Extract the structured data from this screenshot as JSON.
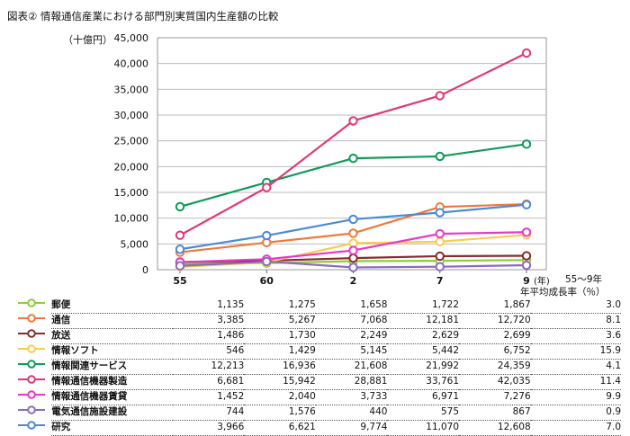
{
  "title": "図表② 情報通信産業における部門別実質国内生産額の比較",
  "unit": "（十億円）",
  "growth_header_line1": "55〜9年",
  "growth_header_line2": "年平均成長率（％）",
  "chart_data": {
    "type": "line",
    "title": "図表② 情報通信産業における部門別実質国内生産額の比較",
    "ylabel": "（十億円）",
    "xlabel": "",
    "x_unit": "(年)",
    "categories": [
      "55",
      "60",
      "2",
      "7",
      "9"
    ],
    "ylim": [
      0,
      45000
    ],
    "yticks": [
      "0",
      "5,000",
      "10,000",
      "15,000",
      "20,000",
      "25,000",
      "30,000",
      "35,000",
      "40,000",
      "45,000"
    ],
    "ytick_values": [
      0,
      5000,
      10000,
      15000,
      20000,
      25000,
      30000,
      35000,
      40000,
      45000
    ],
    "grid": true,
    "legend_position": "bottom-table",
    "series": [
      {
        "name": "郵便",
        "color": "#8ccc3c",
        "values": [
          1135,
          1275,
          1658,
          1722,
          1867
        ],
        "labels": [
          "1,135",
          "1,275",
          "1,658",
          "1,722",
          "1,867"
        ],
        "growth": "3.0"
      },
      {
        "name": "通信",
        "color": "#f07838",
        "values": [
          3385,
          5267,
          7068,
          12181,
          12720
        ],
        "labels": [
          "3,385",
          "5,267",
          "7,068",
          "12,181",
          "12,720"
        ],
        "growth": "8.1"
      },
      {
        "name": "放送",
        "color": "#8a2a2a",
        "values": [
          1486,
          1730,
          2249,
          2629,
          2699
        ],
        "labels": [
          "1,486",
          "1,730",
          "2,249",
          "2,629",
          "2,699"
        ],
        "growth": "3.6"
      },
      {
        "name": "情報ソフト",
        "color": "#f8cc50",
        "values": [
          546,
          1429,
          5145,
          5442,
          6752
        ],
        "labels": [
          "546",
          "1,429",
          "5,145",
          "5,442",
          "6,752"
        ],
        "growth": "15.9"
      },
      {
        "name": "情報関連サービス",
        "color": "#109a58",
        "values": [
          12213,
          16936,
          21608,
          21992,
          24359
        ],
        "labels": [
          "12,213",
          "16,936",
          "21,608",
          "21,992",
          "24,359"
        ],
        "growth": "4.1"
      },
      {
        "name": "情報通信機器製造",
        "color": "#e03878",
        "values": [
          6681,
          15942,
          28881,
          33761,
          42035
        ],
        "labels": [
          "6,681",
          "15,942",
          "28,881",
          "33,761",
          "42,035"
        ],
        "growth": "11.4"
      },
      {
        "name": "情報通信機器賃貸",
        "color": "#e838c8",
        "values": [
          1452,
          2040,
          3733,
          6971,
          7276
        ],
        "labels": [
          "1,452",
          "2,040",
          "3,733",
          "6,971",
          "7,276"
        ],
        "growth": "9.9"
      },
      {
        "name": "電気通信施設建設",
        "color": "#8a6ac0",
        "values": [
          744,
          1576,
          440,
          575,
          867
        ],
        "labels": [
          "744",
          "1,576",
          "440",
          "575",
          "867"
        ],
        "growth": "0.9"
      },
      {
        "name": "研究",
        "color": "#4a8ad8",
        "values": [
          3966,
          6621,
          9774,
          11070,
          12608
        ],
        "labels": [
          "3,966",
          "6,621",
          "9,774",
          "11,070",
          "12,608"
        ],
        "growth": "7.0"
      }
    ]
  }
}
